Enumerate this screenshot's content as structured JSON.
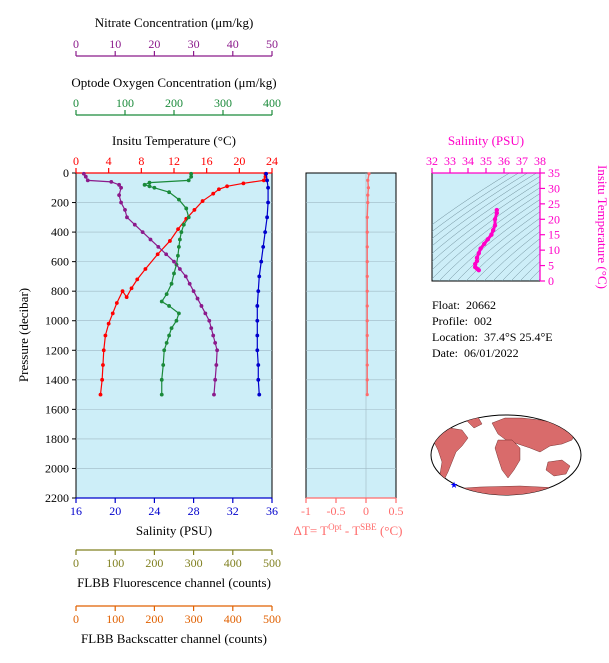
{
  "float_info": {
    "float_label": "Float:",
    "float_value": "20662",
    "profile_label": "Profile:",
    "profile_value": "002",
    "location_label": "Location:",
    "location_value": "37.4°S  25.4°E",
    "date_label": "Date:",
    "date_value": "06/01/2022"
  },
  "colors": {
    "panel_bg": "#cdeef8",
    "nitrate": "#8b1a8b",
    "oxygen": "#1a8a3a",
    "temperature": "#ff0000",
    "salinity": "#0000cc",
    "delta_t": "#ff6b6b",
    "ts_diagram": "#ff00c8",
    "fluorescence": "#808020",
    "backscatter": "#e06000"
  },
  "chart_data": [
    {
      "type": "line",
      "y_axis": {
        "label": "Pressure (decibar)",
        "range": [
          0,
          2200
        ],
        "ticks": [
          0,
          200,
          400,
          600,
          800,
          1000,
          1200,
          1400,
          1600,
          1800,
          2000,
          2200
        ],
        "inverted": true
      },
      "axes": {
        "nitrate": {
          "label": "Nitrate Concentration (μm/kg)",
          "range": [
            0,
            50
          ],
          "ticks": [
            0,
            10,
            20,
            30,
            40,
            50
          ]
        },
        "oxygen": {
          "label": "Optode Oxygen Concentration (μm/kg)",
          "range": [
            0,
            400
          ],
          "ticks": [
            0,
            100,
            200,
            300,
            400
          ]
        },
        "temperature": {
          "label": "Insitu Temperature (°C)",
          "range": [
            0,
            24
          ],
          "ticks": [
            0,
            4,
            8,
            12,
            16,
            20,
            24
          ]
        },
        "salinity": {
          "label": "Salinity (PSU)",
          "range": [
            16,
            36
          ],
          "ticks": [
            16,
            20,
            24,
            28,
            32,
            36
          ]
        },
        "fluorescence": {
          "label": "FLBB Fluorescence channel (counts)",
          "range": [
            0,
            500
          ],
          "ticks": [
            0,
            100,
            200,
            300,
            400,
            500
          ]
        },
        "backscatter": {
          "label": "FLBB Backscatter channel (counts)",
          "range": [
            0,
            500
          ],
          "ticks": [
            0,
            100,
            200,
            300,
            400,
            500
          ]
        }
      },
      "series": [
        {
          "key": "temperature",
          "points": [
            [
              23.2,
              5
            ],
            [
              23.2,
              25
            ],
            [
              23.0,
              50
            ],
            [
              20.5,
              70
            ],
            [
              18.5,
              90
            ],
            [
              17.5,
              110
            ],
            [
              16.8,
              140
            ],
            [
              15.5,
              190
            ],
            [
              14.5,
              250
            ],
            [
              13.5,
              310
            ],
            [
              12.5,
              380
            ],
            [
              11.5,
              460
            ],
            [
              10.0,
              550
            ],
            [
              8.5,
              650
            ],
            [
              7.5,
              720
            ],
            [
              6.8,
              780
            ],
            [
              6.2,
              840
            ],
            [
              5.7,
              800
            ],
            [
              5.0,
              880
            ],
            [
              4.5,
              950
            ],
            [
              4.0,
              1020
            ],
            [
              3.6,
              1100
            ],
            [
              3.4,
              1200
            ],
            [
              3.3,
              1300
            ],
            [
              3.2,
              1400
            ],
            [
              3.0,
              1500
            ]
          ]
        },
        {
          "key": "salinity",
          "points": [
            [
              35.4,
              5
            ],
            [
              35.5,
              50
            ],
            [
              35.6,
              100
            ],
            [
              35.6,
              200
            ],
            [
              35.5,
              300
            ],
            [
              35.3,
              400
            ],
            [
              35.1,
              500
            ],
            [
              34.9,
              600
            ],
            [
              34.7,
              700
            ],
            [
              34.6,
              800
            ],
            [
              34.5,
              900
            ],
            [
              34.5,
              1000
            ],
            [
              34.5,
              1100
            ],
            [
              34.5,
              1200
            ],
            [
              34.6,
              1300
            ],
            [
              34.6,
              1400
            ],
            [
              34.7,
              1500
            ]
          ]
        },
        {
          "key": "oxygen",
          "points": [
            [
              235,
              5
            ],
            [
              235,
              25
            ],
            [
              230,
              50
            ],
            [
              150,
              65
            ],
            [
              140,
              80
            ],
            [
              150,
              90
            ],
            [
              160,
              100
            ],
            [
              190,
              130
            ],
            [
              210,
              180
            ],
            [
              225,
              240
            ],
            [
              230,
              300
            ],
            [
              220,
              350
            ],
            [
              215,
              400
            ],
            [
              212,
              450
            ],
            [
              210,
              500
            ],
            [
              208,
              560
            ],
            [
              205,
              620
            ],
            [
              200,
              680
            ],
            [
              195,
              750
            ],
            [
              185,
              820
            ],
            [
              175,
              870
            ],
            [
              190,
              900
            ],
            [
              210,
              950
            ],
            [
              205,
              1000
            ],
            [
              195,
              1050
            ],
            [
              190,
              1100
            ],
            [
              185,
              1150
            ],
            [
              180,
              1200
            ],
            [
              178,
              1300
            ],
            [
              175,
              1400
            ],
            [
              175,
              1500
            ]
          ]
        },
        {
          "key": "nitrate",
          "points": [
            [
              2,
              5
            ],
            [
              2.5,
              25
            ],
            [
              3,
              50
            ],
            [
              9,
              60
            ],
            [
              11,
              80
            ],
            [
              11.5,
              100
            ],
            [
              11,
              150
            ],
            [
              11.5,
              200
            ],
            [
              12.5,
              250
            ],
            [
              13,
              300
            ],
            [
              15,
              350
            ],
            [
              17,
              400
            ],
            [
              19,
              450
            ],
            [
              21,
              500
            ],
            [
              23,
              550
            ],
            [
              25,
              600
            ],
            [
              26.5,
              650
            ],
            [
              28,
              700
            ],
            [
              29,
              750
            ],
            [
              30,
              800
            ],
            [
              31,
              850
            ],
            [
              32,
              900
            ],
            [
              33,
              950
            ],
            [
              34,
              1000
            ],
            [
              34.5,
              1050
            ],
            [
              35,
              1100
            ],
            [
              35.5,
              1150
            ],
            [
              36,
              1200
            ],
            [
              35.8,
              1300
            ],
            [
              35.5,
              1400
            ],
            [
              35.2,
              1500
            ]
          ]
        }
      ]
    },
    {
      "type": "line",
      "x_axis": {
        "label": "ΔT= T^Opt - T^SBE (°C)",
        "range": [
          -1.0,
          0.5
        ],
        "ticks": [
          -1.0,
          -0.5,
          0.0,
          0.5
        ]
      },
      "series": [
        {
          "key": "delta_t",
          "points": [
            [
              0.05,
              5
            ],
            [
              0.03,
              50
            ],
            [
              0.04,
              100
            ],
            [
              0.03,
              150
            ],
            [
              0.03,
              200
            ],
            [
              0.02,
              300
            ],
            [
              0.02,
              400
            ],
            [
              0.02,
              500
            ],
            [
              0.02,
              600
            ],
            [
              0.02,
              700
            ],
            [
              0.02,
              800
            ],
            [
              0.02,
              900
            ],
            [
              0.02,
              1000
            ],
            [
              0.02,
              1100
            ],
            [
              0.02,
              1200
            ],
            [
              0.02,
              1300
            ],
            [
              0.02,
              1400
            ],
            [
              0.02,
              1500
            ]
          ]
        }
      ]
    },
    {
      "type": "scatter",
      "x_axis": {
        "label": "Salinity (PSU)",
        "range": [
          32,
          38
        ],
        "ticks": [
          32,
          33,
          34,
          35,
          36,
          37,
          38
        ]
      },
      "y_axis": {
        "label": "Insitu Temperature (°C)",
        "range": [
          0,
          35
        ],
        "ticks": [
          0,
          5,
          10,
          15,
          20,
          25,
          30,
          35
        ]
      },
      "points": [
        [
          35.6,
          23
        ],
        [
          35.6,
          22
        ],
        [
          35.5,
          20
        ],
        [
          35.5,
          18
        ],
        [
          35.4,
          16.5
        ],
        [
          35.3,
          15
        ],
        [
          35.1,
          13.5
        ],
        [
          34.9,
          12
        ],
        [
          34.7,
          10.5
        ],
        [
          34.6,
          9
        ],
        [
          34.5,
          7.5
        ],
        [
          34.5,
          6.5
        ],
        [
          34.4,
          5.5
        ],
        [
          34.4,
          4.5
        ],
        [
          34.5,
          4
        ],
        [
          34.6,
          3.5
        ]
      ]
    }
  ]
}
